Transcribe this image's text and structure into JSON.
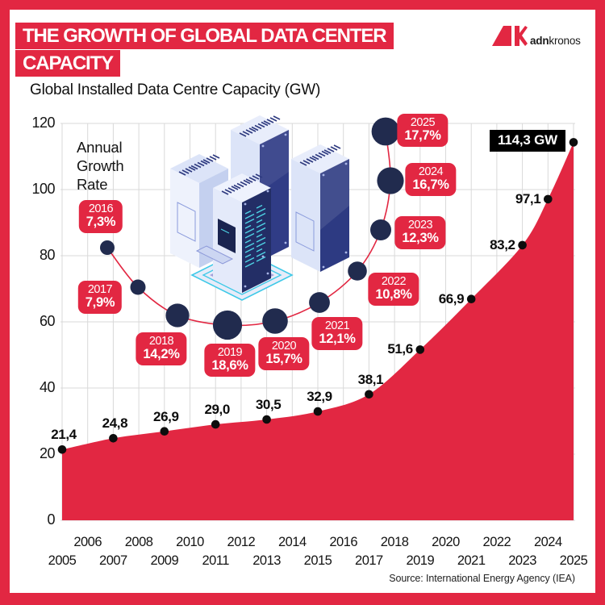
{
  "header": {
    "title_line1": "THE GROWTH OF GLOBAL DATA CENTER",
    "title_line2": "CAPACITY",
    "subtitle": "Global Installed Data Centre Capacity (GW)",
    "logo": {
      "brand_bold": "adn",
      "brand_regular": "kronos"
    }
  },
  "annual_growth_label": "Annual Growth Rate",
  "chart_data": {
    "type": "area",
    "title": "Global Installed Data Centre Capacity (GW)",
    "x": [
      2005,
      2007,
      2009,
      2011,
      2013,
      2015,
      2017,
      2019,
      2021,
      2023,
      2024,
      2025
    ],
    "values": [
      21.4,
      24.8,
      26.9,
      29.0,
      30.5,
      32.9,
      38.1,
      51.6,
      66.9,
      83.2,
      97.1,
      114.3
    ],
    "point_labels": [
      "21,4",
      "24,8",
      "26,9",
      "29,0",
      "30,5",
      "32,9",
      "38,1",
      "51,6",
      "66,9",
      "83,2",
      "97,1",
      "114,3 GW"
    ],
    "ylim": [
      0,
      120
    ],
    "y_ticks": [
      0,
      20,
      40,
      60,
      80,
      100,
      120
    ],
    "x_ticks_row1": [
      2006,
      2008,
      2010,
      2012,
      2014,
      2016,
      2018,
      2020,
      2022,
      2024
    ],
    "x_ticks_row2": [
      2005,
      2007,
      2009,
      2011,
      2013,
      2015,
      2017,
      2019,
      2021,
      2023,
      2025
    ],
    "grid": true,
    "annual_growth": [
      {
        "year": 2016,
        "rate_label": "7,3%",
        "rate": 7.3
      },
      {
        "year": 2017,
        "rate_label": "7,9%",
        "rate": 7.9
      },
      {
        "year": 2018,
        "rate_label": "14,2%",
        "rate": 14.2
      },
      {
        "year": 2019,
        "rate_label": "18,6%",
        "rate": 18.6
      },
      {
        "year": 2020,
        "rate_label": "15,7%",
        "rate": 15.7
      },
      {
        "year": 2021,
        "rate_label": "12,1%",
        "rate": 12.1
      },
      {
        "year": 2022,
        "rate_label": "10,8%",
        "rate": 10.8
      },
      {
        "year": 2023,
        "rate_label": "12,3%",
        "rate": 12.3
      },
      {
        "year": 2024,
        "rate_label": "16,7%",
        "rate": 16.7
      },
      {
        "year": 2025,
        "rate_label": "17,7%",
        "rate": 17.7
      }
    ]
  },
  "footer": {
    "source": "Source: International Energy Agency (IEA)"
  },
  "colors": {
    "accent_red": "#E22742",
    "bubble_navy": "#212B4E",
    "dot_black": "#0D0D0D",
    "grid_gray": "#D9D9D9",
    "peak_badge_bg": "#000000",
    "text_dark": "#141414"
  }
}
